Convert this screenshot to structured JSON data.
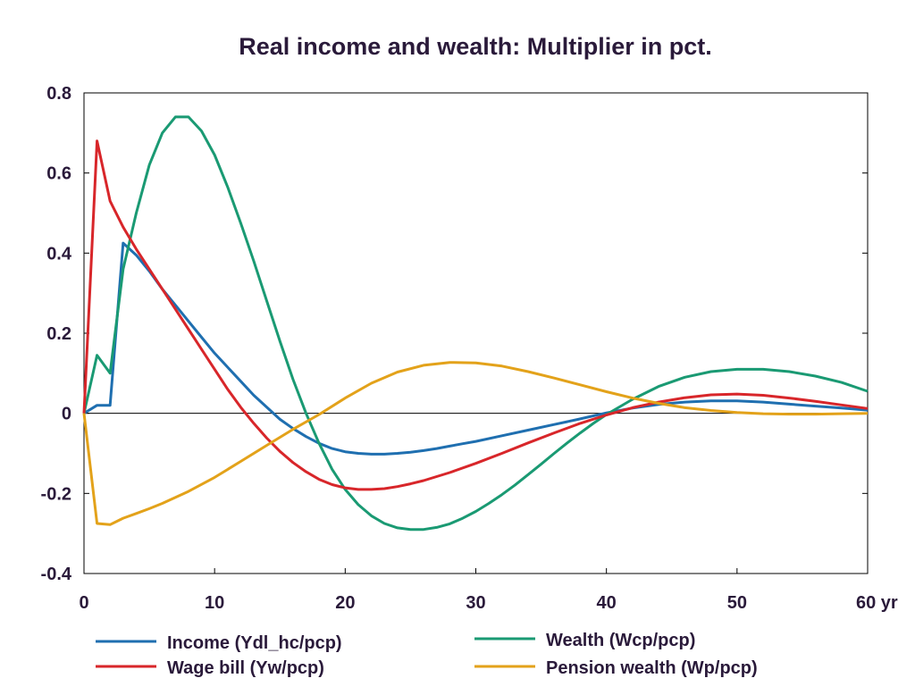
{
  "chart_data": {
    "type": "line",
    "title": "Real income and wealth: Multiplier in pct.",
    "xlabel": "",
    "ylabel": "",
    "x_unit_label": "yr",
    "xlim": [
      0,
      60
    ],
    "ylim": [
      -0.4,
      0.8
    ],
    "x_ticks": [
      0,
      10,
      20,
      30,
      40,
      50,
      60
    ],
    "x_tick_labels": [
      "0",
      "10",
      "20",
      "30",
      "40",
      "50",
      "60 yr"
    ],
    "y_ticks": [
      -0.4,
      -0.2,
      0,
      0.2,
      0.4,
      0.6,
      0.8
    ],
    "y_tick_labels": [
      "-0.4",
      "-0.2",
      "0",
      "0.2",
      "0.4",
      "0.6",
      "0.8"
    ],
    "grid": false,
    "zero_line": true,
    "legend_position": "bottom",
    "series": [
      {
        "name": "Income (Ydl_hc/pcp)",
        "color": "#1f6fb0",
        "x": [
          0,
          1,
          2,
          3,
          4,
          5,
          6,
          7,
          8,
          9,
          10,
          11,
          12,
          13,
          14,
          15,
          16,
          17,
          18,
          19,
          20,
          21,
          22,
          23,
          24,
          25,
          26,
          27,
          28,
          29,
          30,
          32,
          34,
          36,
          38,
          40,
          42,
          44,
          46,
          48,
          50,
          52,
          54,
          56,
          58,
          60
        ],
        "y": [
          0,
          0.02,
          0.02,
          0.425,
          0.395,
          0.355,
          0.31,
          0.27,
          0.23,
          0.19,
          0.15,
          0.115,
          0.08,
          0.045,
          0.015,
          -0.015,
          -0.038,
          -0.058,
          -0.075,
          -0.088,
          -0.096,
          -0.1,
          -0.102,
          -0.102,
          -0.1,
          -0.097,
          -0.093,
          -0.088,
          -0.082,
          -0.076,
          -0.07,
          -0.056,
          -0.042,
          -0.028,
          -0.014,
          0.001,
          0.013,
          0.022,
          0.028,
          0.031,
          0.031,
          0.028,
          0.023,
          0.018,
          0.013,
          0.008
        ]
      },
      {
        "name": "Wealth (Wcp/pcp)",
        "color": "#1a9a73",
        "x": [
          0,
          1,
          2,
          3,
          4,
          5,
          6,
          7,
          8,
          9,
          10,
          11,
          12,
          13,
          14,
          15,
          16,
          17,
          18,
          19,
          20,
          21,
          22,
          23,
          24,
          25,
          26,
          27,
          28,
          29,
          30,
          31,
          32,
          33,
          34,
          35,
          36,
          37,
          38,
          39,
          40,
          42,
          44,
          46,
          48,
          50,
          52,
          54,
          56,
          58,
          60
        ],
        "y": [
          0,
          0.145,
          0.1,
          0.36,
          0.5,
          0.62,
          0.7,
          0.74,
          0.74,
          0.705,
          0.645,
          0.565,
          0.475,
          0.38,
          0.28,
          0.18,
          0.085,
          0.0,
          -0.075,
          -0.14,
          -0.19,
          -0.228,
          -0.256,
          -0.275,
          -0.286,
          -0.29,
          -0.29,
          -0.285,
          -0.276,
          -0.262,
          -0.245,
          -0.225,
          -0.203,
          -0.179,
          -0.153,
          -0.127,
          -0.1,
          -0.074,
          -0.049,
          -0.025,
          -0.003,
          0.035,
          0.067,
          0.09,
          0.104,
          0.11,
          0.11,
          0.104,
          0.093,
          0.077,
          0.055
        ]
      },
      {
        "name": "Wage bill (Yw/pcp)",
        "color": "#d8262a",
        "x": [
          0,
          1,
          2,
          3,
          4,
          5,
          6,
          7,
          8,
          9,
          10,
          11,
          12,
          13,
          14,
          15,
          16,
          17,
          18,
          19,
          20,
          21,
          22,
          23,
          24,
          25,
          26,
          28,
          30,
          32,
          34,
          36,
          38,
          40,
          42,
          44,
          46,
          48,
          50,
          52,
          54,
          56,
          58,
          60
        ],
        "y": [
          0,
          0.68,
          0.53,
          0.465,
          0.41,
          0.36,
          0.31,
          0.26,
          0.21,
          0.16,
          0.11,
          0.06,
          0.015,
          -0.025,
          -0.062,
          -0.095,
          -0.123,
          -0.146,
          -0.165,
          -0.178,
          -0.186,
          -0.19,
          -0.19,
          -0.188,
          -0.183,
          -0.176,
          -0.168,
          -0.148,
          -0.125,
          -0.1,
          -0.074,
          -0.049,
          -0.025,
          -0.004,
          0.014,
          0.028,
          0.039,
          0.046,
          0.048,
          0.045,
          0.038,
          0.03,
          0.021,
          0.012
        ]
      },
      {
        "name": "Pension wealth (Wp/pcp)",
        "color": "#e3a21a",
        "x": [
          0,
          1,
          2,
          3,
          4,
          5,
          6,
          8,
          10,
          12,
          14,
          16,
          18,
          20,
          22,
          24,
          26,
          28,
          30,
          32,
          34,
          36,
          38,
          40,
          42,
          44,
          46,
          48,
          50,
          52,
          54,
          56,
          58,
          60
        ],
        "y": [
          0,
          -0.275,
          -0.278,
          -0.262,
          -0.25,
          -0.238,
          -0.225,
          -0.195,
          -0.16,
          -0.12,
          -0.08,
          -0.04,
          -0.003,
          0.038,
          0.075,
          0.103,
          0.12,
          0.127,
          0.126,
          0.118,
          0.104,
          0.088,
          0.071,
          0.054,
          0.038,
          0.025,
          0.014,
          0.007,
          0.002,
          -0.001,
          -0.002,
          -0.002,
          -0.001,
          0.0
        ]
      }
    ]
  }
}
